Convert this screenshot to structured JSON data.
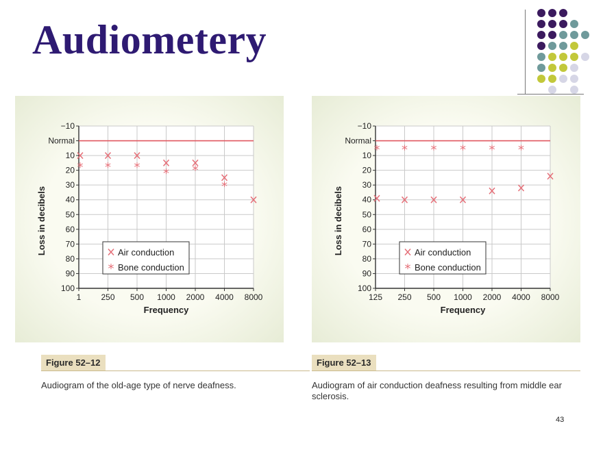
{
  "slide": {
    "title": "Audiometery",
    "page_number": "43",
    "decor_colors": [
      "#3b1a5e",
      "#6f9a9b",
      "#c2c83a",
      "#d6d6e6"
    ]
  },
  "chart_data": [
    {
      "type": "scatter",
      "figure_label": "Figure 52–12",
      "caption": "Audiogram of the old-age type of nerve deafness.",
      "xlabel": "Frequency",
      "ylabel": "Loss in decibels",
      "x_categories": [
        "1",
        "250",
        "500",
        "1000",
        "2000",
        "4000",
        "8000"
      ],
      "y_ticks": [
        "−10",
        "Normal",
        "10",
        "20",
        "30",
        "40",
        "50",
        "60",
        "70",
        "80",
        "90",
        "100"
      ],
      "ylim": [
        -10,
        100
      ],
      "y_inverted": true,
      "normal_level": 0,
      "normal_color": "#e0575f",
      "marker_color": "#e56f78",
      "grid": true,
      "legend_position": "lower-left",
      "series": [
        {
          "name": "Air conduction",
          "marker": "X",
          "points": [
            {
              "x": "1",
              "y": 10
            },
            {
              "x": "250",
              "y": 10
            },
            {
              "x": "500",
              "y": 10
            },
            {
              "x": "1000",
              "y": 15
            },
            {
              "x": "2000",
              "y": 15
            },
            {
              "x": "4000",
              "y": 25
            },
            {
              "x": "8000",
              "y": 40
            }
          ]
        },
        {
          "name": "Bone conduction",
          "marker": "*",
          "points": [
            {
              "x": "1",
              "y": 17
            },
            {
              "x": "250",
              "y": 17
            },
            {
              "x": "500",
              "y": 17
            },
            {
              "x": "1000",
              "y": 21
            },
            {
              "x": "2000",
              "y": 19
            },
            {
              "x": "4000",
              "y": 30
            }
          ]
        }
      ]
    },
    {
      "type": "scatter",
      "figure_label": "Figure 52–13",
      "caption": "Audiogram of air conduction deafness resulting from middle ear sclerosis.",
      "xlabel": "Frequency",
      "ylabel": "Loss in decibels",
      "x_categories": [
        "125",
        "250",
        "500",
        "1000",
        "2000",
        "4000",
        "8000"
      ],
      "y_ticks": [
        "−10",
        "Normal",
        "10",
        "20",
        "30",
        "40",
        "50",
        "60",
        "70",
        "80",
        "90",
        "100"
      ],
      "ylim": [
        -10,
        100
      ],
      "y_inverted": true,
      "normal_level": 0,
      "normal_color": "#e0575f",
      "marker_color": "#e56f78",
      "grid": true,
      "legend_position": "lower-left",
      "series": [
        {
          "name": "Air conduction",
          "marker": "X",
          "points": [
            {
              "x": "125",
              "y": 39
            },
            {
              "x": "250",
              "y": 40
            },
            {
              "x": "500",
              "y": 40
            },
            {
              "x": "1000",
              "y": 40
            },
            {
              "x": "2000",
              "y": 34
            },
            {
              "x": "4000",
              "y": 32
            },
            {
              "x": "8000",
              "y": 24
            }
          ]
        },
        {
          "name": "Bone conduction",
          "marker": "*",
          "points": [
            {
              "x": "125",
              "y": 5
            },
            {
              "x": "250",
              "y": 5
            },
            {
              "x": "500",
              "y": 5
            },
            {
              "x": "1000",
              "y": 5
            },
            {
              "x": "2000",
              "y": 5
            },
            {
              "x": "4000",
              "y": 5
            }
          ]
        }
      ]
    }
  ]
}
